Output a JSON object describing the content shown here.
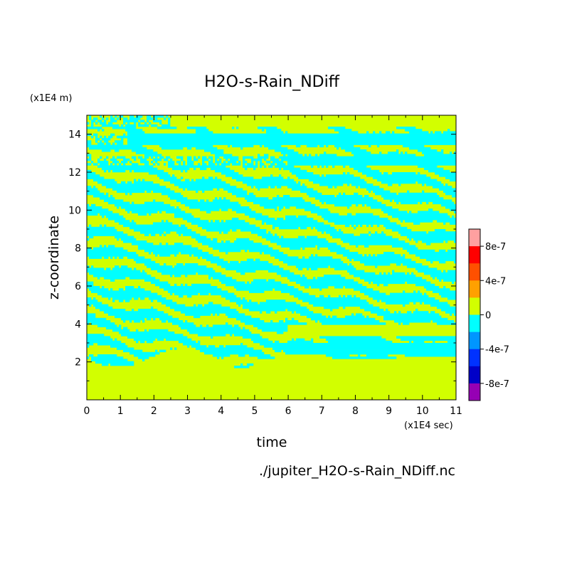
{
  "chart_data": {
    "type": "heatmap",
    "title": "H2O-s-Rain_NDiff",
    "xlabel": "time",
    "ylabel": "z-coordinate",
    "x_unit_label": "(x1E4 sec)",
    "y_unit_label": "(x1E4 m)",
    "filename": "./jupiter_H2O-s-Rain_NDiff.nc",
    "xlim": [
      0,
      11
    ],
    "ylim": [
      0,
      15
    ],
    "x_ticks": [
      "0",
      "1",
      "2",
      "3",
      "4",
      "5",
      "6",
      "7",
      "8",
      "9",
      "10",
      "11"
    ],
    "y_ticks": [
      "2",
      "4",
      "6",
      "8",
      "10",
      "12",
      "14"
    ],
    "colorbar": {
      "levels": [
        {
          "color": "#ffa0a0"
        },
        {
          "color": "#ff0000"
        },
        {
          "color": "#ff5000"
        },
        {
          "color": "#ffa000"
        },
        {
          "color": "#d2ff00"
        },
        {
          "color": "#00ffff"
        },
        {
          "color": "#0096ff"
        },
        {
          "color": "#0032ff"
        },
        {
          "color": "#0000c8"
        },
        {
          "color": "#9600b4"
        }
      ],
      "labels": [
        "8e-7",
        "4e-7",
        "0",
        "-4e-7",
        "-8e-7"
      ]
    },
    "dominant_colors": {
      "zero_or_positive": "#d2ff00",
      "negative": "#00ffff"
    }
  }
}
